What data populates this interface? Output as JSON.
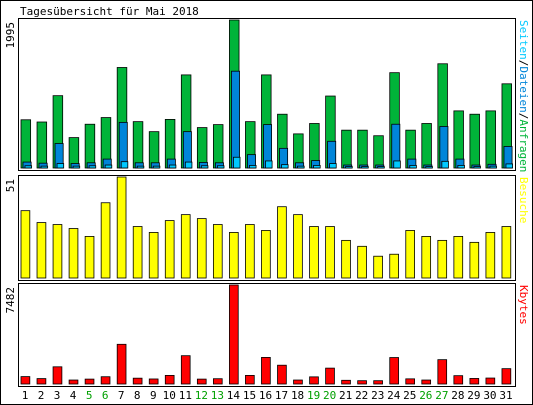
{
  "chart_data": {
    "type": "bar",
    "title": "Tagesübersicht für Mai 2018",
    "days": [
      "1",
      "2",
      "3",
      "4",
      "5",
      "6",
      "7",
      "8",
      "9",
      "10",
      "11",
      "12",
      "13",
      "14",
      "15",
      "16",
      "17",
      "18",
      "19",
      "20",
      "21",
      "22",
      "23",
      "24",
      "25",
      "26",
      "27",
      "28",
      "29",
      "30",
      "31"
    ],
    "weekend_days": [
      "5",
      "6",
      "12",
      "13",
      "19",
      "20",
      "26",
      "27"
    ],
    "colors": {
      "anfragen": "#00b439",
      "dateien": "#0085d9",
      "seiten": "#00c8ff",
      "besuche": "#ffff00",
      "kbytes": "#ff0000",
      "weekend": "#00a000",
      "weekday": "#000000",
      "frame": "#000000"
    },
    "panels": [
      {
        "id": "hits",
        "ymax": 1995,
        "ymax_label": "1995",
        "side_label_parts": [
          {
            "text": "Seiten",
            "color": "#00c8ff"
          },
          {
            "text": "/",
            "color": "#000000"
          },
          {
            "text": "Dateien",
            "color": "#0085d9"
          },
          {
            "text": "/",
            "color": "#000000"
          },
          {
            "text": "Anfragen",
            "color": "#00b439"
          }
        ],
        "series": [
          {
            "name": "Anfragen",
            "color": "#00b439",
            "values": [
              650,
              620,
              975,
              410,
              590,
              680,
              1355,
              625,
              490,
              655,
              1255,
              545,
              585,
              1995,
              625,
              1255,
              725,
              460,
              600,
              970,
              510,
              510,
              435,
              1285,
              510,
              600,
              1405,
              770,
              725,
              770,
              1135
            ]
          },
          {
            "name": "Dateien",
            "color": "#0085d9",
            "values": [
              80,
              65,
              330,
              60,
              70,
              120,
              615,
              70,
              70,
              120,
              490,
              75,
              70,
              1305,
              180,
              585,
              265,
              70,
              100,
              360,
              40,
              40,
              40,
              590,
              120,
              40,
              560,
              120,
              40,
              50,
              290
            ]
          },
          {
            "name": "Seiten",
            "color": "#00c8ff",
            "values": [
              30,
              25,
              60,
              25,
              30,
              40,
              85,
              25,
              25,
              40,
              80,
              30,
              30,
              145,
              35,
              95,
              45,
              25,
              35,
              60,
              20,
              20,
              20,
              95,
              35,
              20,
              90,
              35,
              20,
              25,
              55
            ]
          }
        ]
      },
      {
        "id": "visits",
        "ymax": 51,
        "ymax_label": "51",
        "side_label_parts": [
          {
            "text": "Besuche",
            "color": "#ffff00"
          }
        ],
        "series": [
          {
            "name": "Besuche",
            "color": "#ffff00",
            "values": [
              34,
              28,
              27,
              25,
              21,
              38,
              51,
              26,
              23,
              29,
              32,
              30,
              27,
              23,
              27,
              24,
              36,
              32,
              26,
              26,
              19,
              16,
              11,
              12,
              24,
              21,
              19,
              21,
              18,
              23,
              26
            ]
          }
        ]
      },
      {
        "id": "kbytes",
        "ymax": 7482,
        "ymax_label": "7482",
        "side_label_parts": [
          {
            "text": "Kbytes",
            "color": "#ff0000"
          }
        ],
        "series": [
          {
            "name": "Kbytes",
            "color": "#ff0000",
            "values": [
              560,
              410,
              1300,
              300,
              370,
              550,
              3000,
              440,
              380,
              650,
              2140,
              370,
              400,
              7482,
              650,
              2010,
              1420,
              300,
              540,
              1200,
              280,
              250,
              250,
              2000,
              390,
              300,
              1840,
              630,
              420,
              450,
              1160
            ]
          }
        ]
      }
    ]
  }
}
